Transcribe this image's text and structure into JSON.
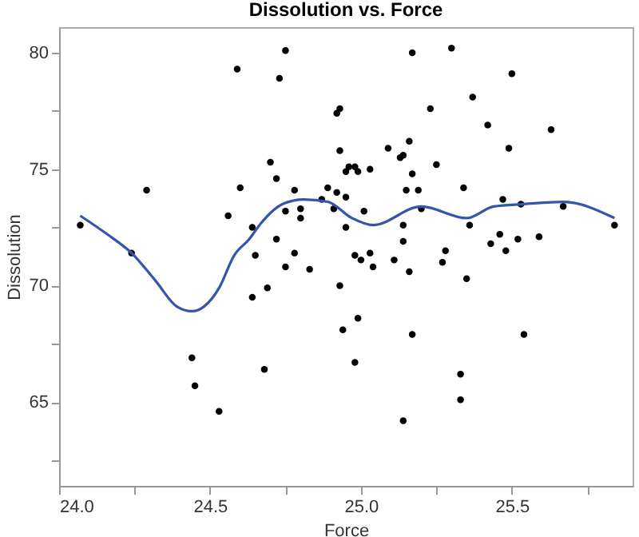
{
  "chart_data": {
    "type": "scatter",
    "title": "Dissolution vs. Force",
    "xlabel": "Force",
    "ylabel": "Dissolution",
    "xlim": [
      24,
      25.9
    ],
    "ylim": [
      61.4,
      81.1
    ],
    "xticks": [
      {
        "value": 24,
        "label": "24.0"
      },
      {
        "value": 24.25,
        "label": null
      },
      {
        "value": 24.5,
        "label": "24.5"
      },
      {
        "value": 24.75,
        "label": null
      },
      {
        "value": 25,
        "label": "25.0"
      },
      {
        "value": 25.25,
        "label": null
      },
      {
        "value": 25.5,
        "label": "25.5"
      },
      {
        "value": 25.75,
        "label": null
      }
    ],
    "yticks": [
      {
        "value": 62.5,
        "label": null
      },
      65,
      {
        "value": 67.5,
        "label": null
      },
      70,
      {
        "value": 72.5,
        "label": null
      },
      75,
      {
        "value": 77.5,
        "label": null
      },
      80
    ],
    "grid": false,
    "series": [
      {
        "marker": "circle",
        "color": "#000000",
        "x": [
          24.07,
          24.29,
          24.59,
          24.75,
          24.73,
          24.92,
          24.93,
          24.93,
          24.7,
          24.72,
          24.6,
          24.78,
          24.89,
          24.92,
          24.95,
          24.95,
          24.96,
          24.87,
          24.91,
          24.75,
          24.8,
          24.8,
          24.56,
          24.64,
          24.95,
          24.72,
          24.65,
          24.78,
          24.98,
          24.99,
          25.03,
          25.09,
          25.13,
          25.14,
          25.16,
          25.17,
          25.3,
          25.17,
          25.25,
          25.23,
          25.37,
          25.5,
          25.42,
          25.63,
          25.49,
          25.15,
          25.19,
          25.34,
          25.01,
          25.2,
          25.47,
          25.53,
          25.67,
          25.84,
          25.14,
          25.36,
          25.14,
          25.28,
          25.43,
          25.46,
          25.48,
          25.52,
          25.59,
          24.98,
          25.0,
          25.03,
          25.04,
          25.11,
          25.16,
          25.27,
          25.35,
          24.93,
          24.94,
          24.99,
          24.98,
          25.17,
          25.54,
          25.33,
          25.33,
          25.14,
          24.24,
          24.75,
          24.83,
          24.69,
          24.64,
          24.44,
          24.45,
          24.53,
          24.68
        ],
        "values": [
          72.6,
          74.1,
          79.3,
          80.1,
          78.9,
          77.4,
          77.6,
          75.8,
          75.3,
          74.6,
          74.2,
          74.1,
          74.2,
          74.0,
          73.8,
          74.9,
          75.1,
          73.7,
          73.3,
          73.2,
          73.3,
          72.9,
          73.0,
          72.5,
          72.5,
          72.0,
          71.3,
          71.4,
          75.1,
          74.9,
          75.0,
          75.9,
          75.5,
          75.6,
          76.2,
          80.0,
          80.2,
          74.8,
          75.2,
          77.6,
          78.1,
          79.1,
          76.9,
          76.7,
          75.9,
          74.1,
          74.1,
          74.2,
          73.2,
          73.3,
          73.7,
          73.5,
          73.4,
          72.6,
          72.6,
          72.6,
          71.9,
          71.5,
          71.8,
          72.2,
          71.5,
          72.0,
          72.1,
          71.3,
          71.1,
          71.4,
          70.8,
          71.1,
          70.6,
          71.0,
          70.3,
          70.0,
          68.1,
          68.6,
          66.7,
          67.9,
          67.9,
          66.2,
          65.1,
          64.2,
          71.4,
          70.8,
          70.7,
          69.9,
          69.5,
          66.9,
          65.7,
          64.6,
          66.4
        ]
      },
      {
        "type": "line",
        "color": "#3355aa",
        "x": [
          24.07,
          24.16,
          24.24,
          24.32,
          24.39,
          24.44,
          24.48,
          24.53,
          24.58,
          24.63,
          24.67,
          24.74,
          24.81,
          24.89,
          24.97,
          25.04,
          25.2,
          25.35,
          25.44,
          25.54,
          25.67,
          25.84
        ],
        "values": [
          73.0,
          72.2,
          71.4,
          70.2,
          69.1,
          68.9,
          69.1,
          69.9,
          71.3,
          72.0,
          72.7,
          73.5,
          73.7,
          73.6,
          72.9,
          72.6,
          73.4,
          72.9,
          73.4,
          73.5,
          73.6,
          72.9
        ]
      }
    ]
  }
}
